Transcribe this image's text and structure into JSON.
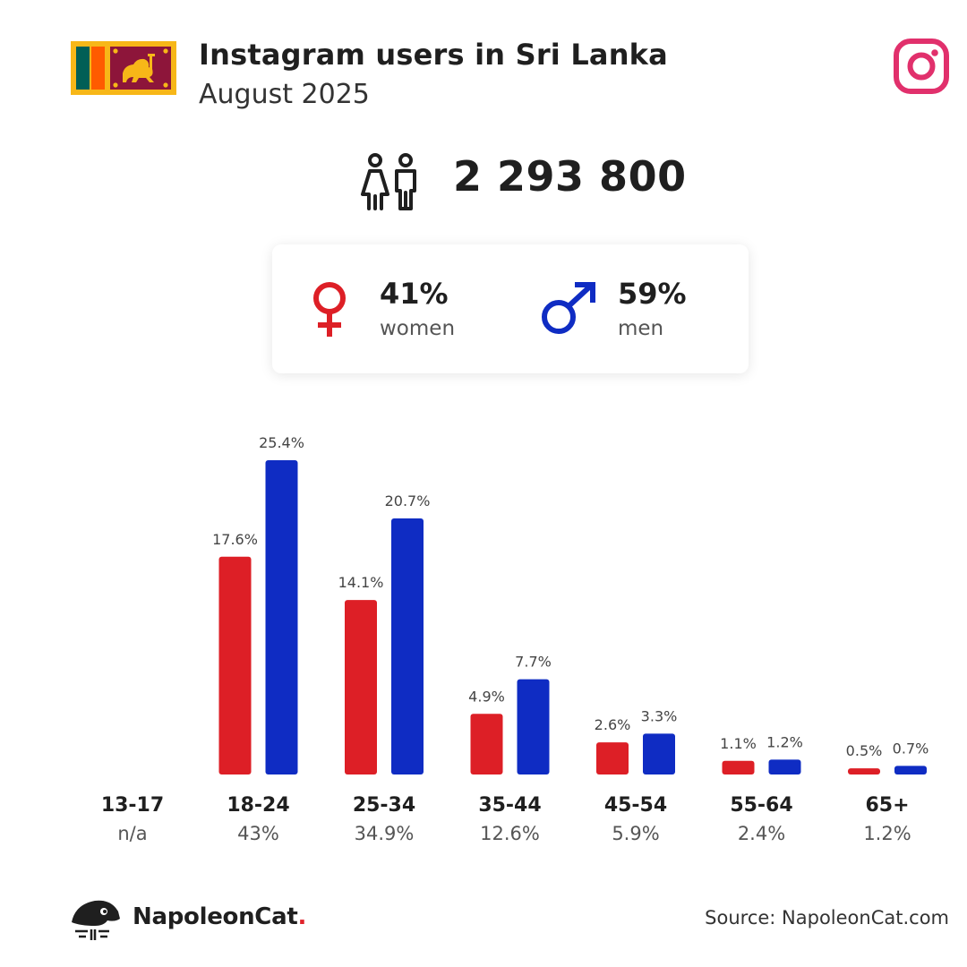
{
  "header": {
    "title": "Instagram users in Sri Lanka",
    "subtitle": "August 2025"
  },
  "icons": {
    "flag": "sri-lanka-flag",
    "platform": "instagram-icon",
    "users": "people-icon",
    "female": "female-symbol-icon",
    "male": "male-symbol-icon",
    "brand_logo": "napoleoncat-logo"
  },
  "summary": {
    "total_users": "2 293 800",
    "women_pct": "41%",
    "women_label": "women",
    "men_pct": "59%",
    "men_label": "men"
  },
  "colors": {
    "women": "#dd1f26",
    "men": "#0f2cc3",
    "instagram": "#e1306c"
  },
  "chart_data": {
    "type": "bar",
    "categories": [
      "13-17",
      "18-24",
      "25-34",
      "35-44",
      "45-54",
      "55-64",
      "65+"
    ],
    "category_totals": [
      "n/a",
      "43%",
      "34.9%",
      "12.6%",
      "5.9%",
      "2.4%",
      "1.2%"
    ],
    "series": [
      {
        "name": "women",
        "values": [
          null,
          17.6,
          14.1,
          4.9,
          2.6,
          1.1,
          0.5
        ],
        "labels": [
          "",
          "17.6%",
          "14.1%",
          "4.9%",
          "2.6%",
          "1.1%",
          "0.5%"
        ]
      },
      {
        "name": "men",
        "values": [
          null,
          25.4,
          20.7,
          7.7,
          3.3,
          1.2,
          0.7
        ],
        "labels": [
          "",
          "25.4%",
          "20.7%",
          "7.7%",
          "3.3%",
          "1.2%",
          "0.7%"
        ]
      }
    ],
    "title": "",
    "xlabel": "",
    "ylabel": "",
    "ylim": [
      0,
      25.4
    ],
    "grid": false,
    "legend": "none"
  },
  "footer": {
    "brand": "NapoleonCat",
    "brand_dot": ".",
    "source": "Source: NapoleonCat.com"
  }
}
